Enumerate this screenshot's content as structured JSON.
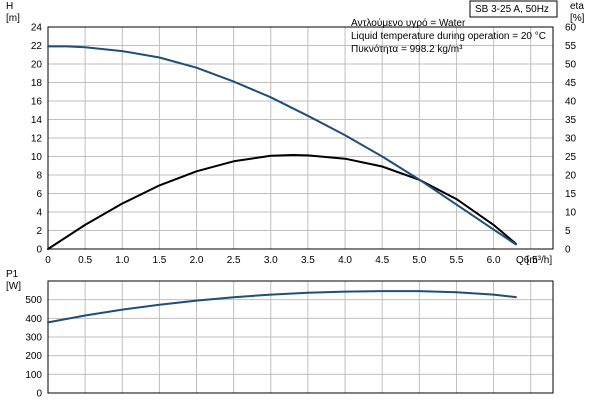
{
  "chart_data": [
    {
      "type": "line",
      "tag": "SB 3-25 A, 50Hz",
      "annotations": [
        "Αντλούμενο υγρό = Water",
        "Liquid temperature during operation = 20 °C",
        "Πυκνότητα = 998.2 kg/m³"
      ],
      "ylabel": "H",
      "yunit": "[m]",
      "ylabel_right": "eta",
      "yunit_right": "[%]",
      "xlabel": "Q [m³/h]",
      "xlim": [
        0,
        6.8
      ],
      "ylim": [
        0,
        24
      ],
      "ylim_right": [
        0,
        60
      ],
      "x_ticks": [
        "0",
        "0.5",
        "1.0",
        "1.5",
        "2.0",
        "2.5",
        "3.0",
        "3.5",
        "4.0",
        "4.5",
        "5.0",
        "5.5",
        "6.0",
        "6.5"
      ],
      "y_ticks": [
        "0",
        "2",
        "4",
        "6",
        "8",
        "10",
        "12",
        "14",
        "16",
        "18",
        "20",
        "22",
        "24"
      ],
      "y_ticks_right": [
        "0",
        "5",
        "10",
        "15",
        "20",
        "25",
        "30",
        "35",
        "40",
        "45",
        "50",
        "55",
        "60"
      ],
      "grid": true,
      "series": [
        {
          "axis": "left",
          "color": "#1f4e79",
          "x": [
            0,
            0.25,
            0.5,
            1.0,
            1.5,
            2.0,
            2.5,
            3.0,
            3.5,
            4.0,
            4.5,
            5.0,
            5.5,
            6.0,
            6.3
          ],
          "values": [
            21.9,
            21.9,
            21.8,
            21.4,
            20.7,
            19.6,
            18.1,
            16.4,
            14.4,
            12.3,
            10.0,
            7.5,
            4.8,
            2.1,
            0.5
          ]
        },
        {
          "axis": "right",
          "color": "#000000",
          "x": [
            0,
            0.5,
            1.0,
            1.5,
            2.0,
            2.5,
            3.0,
            3.3,
            3.5,
            4.0,
            4.5,
            5.0,
            5.5,
            6.0,
            6.3
          ],
          "values": [
            0,
            6.5,
            12.3,
            17.2,
            21.0,
            23.7,
            25.2,
            25.4,
            25.3,
            24.4,
            22.3,
            18.7,
            13.5,
            6.5,
            1.4
          ]
        }
      ]
    },
    {
      "type": "line",
      "ylabel": "P1",
      "yunit": "[W]",
      "xlim": [
        0,
        6.8
      ],
      "ylim": [
        0,
        600
      ],
      "y_ticks": [
        "0",
        "100",
        "200",
        "300",
        "400",
        "500"
      ],
      "grid": true,
      "series": [
        {
          "color": "#1f4e79",
          "x": [
            0,
            0.5,
            1.0,
            1.5,
            2.0,
            2.5,
            3.0,
            3.5,
            4.0,
            4.5,
            5.0,
            5.5,
            6.0,
            6.3
          ],
          "values": [
            378,
            415,
            447,
            473,
            495,
            513,
            527,
            537,
            543,
            546,
            546,
            540,
            527,
            514
          ]
        }
      ]
    }
  ],
  "colors": {
    "grid": "#bfbfbf",
    "axis": "#000000",
    "frame": "#000000"
  }
}
